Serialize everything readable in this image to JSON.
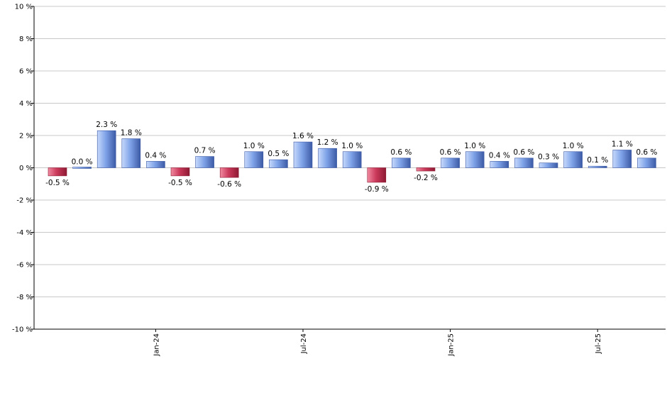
{
  "chart_data": {
    "type": "bar",
    "title": "",
    "xlabel": "",
    "ylabel": "",
    "ylim": [
      -10,
      10
    ],
    "y_ticks": [
      10,
      8,
      6,
      4,
      2,
      0,
      -2,
      -4,
      -6,
      -8,
      -10
    ],
    "y_tick_suffix": " %",
    "grid": true,
    "legend": "none",
    "values": [
      -0.5,
      0.0,
      2.3,
      1.8,
      0.4,
      -0.5,
      0.7,
      -0.6,
      1.0,
      0.5,
      1.6,
      1.2,
      1.0,
      -0.9,
      0.6,
      -0.2,
      0.6,
      1.0,
      0.4,
      0.6,
      0.3,
      1.0,
      0.1,
      1.1,
      0.6
    ],
    "data_labels": [
      "-0.5 %",
      "0.0 %",
      "2.3 %",
      "1.8 %",
      "0.4 %",
      "-0.5 %",
      "0.7 %",
      "-0.6 %",
      "1.0 %",
      "0.5 %",
      "1.6 %",
      "1.2 %",
      "1.0 %",
      "-0.9 %",
      "0.6 %",
      "-0.2 %",
      "0.6 %",
      "1.0 %",
      "0.4 %",
      "0.6 %",
      "0.3 %",
      "1.0 %",
      "0.1 %",
      "1.1 %",
      "0.6 %"
    ],
    "x_tick_labels": [
      {
        "index": 4,
        "label": "Jan-24"
      },
      {
        "index": 10,
        "label": "Jul-24"
      },
      {
        "index": 16,
        "label": "Jan-25"
      },
      {
        "index": 22,
        "label": "Jul-25"
      }
    ],
    "colors": {
      "positive": "#7fa3e8",
      "positive_dark": "#3c5aa6",
      "positive_light": "#c7d9fb",
      "negative": "#cc3b5c",
      "negative_dark": "#8e1a33",
      "negative_light": "#f08aa0",
      "grid": "#c8c8c8",
      "axis": "#000000"
    }
  }
}
